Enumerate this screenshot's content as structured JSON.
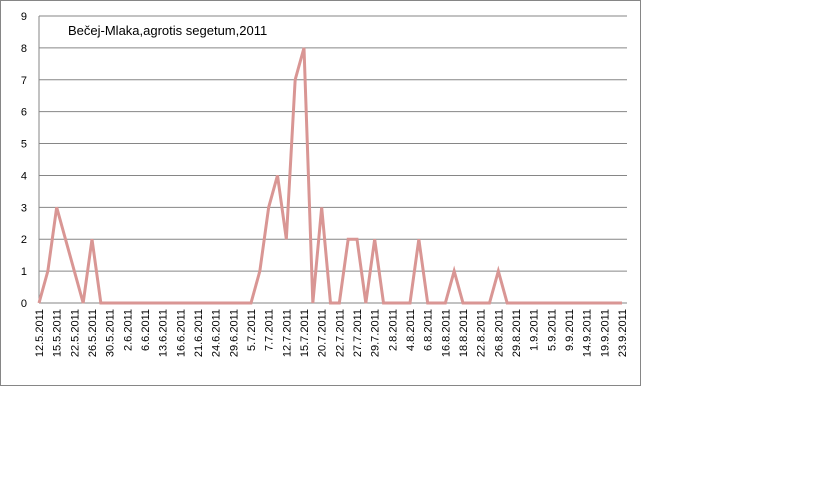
{
  "chart_data": {
    "type": "line",
    "title": "Bečej-Mlaka,agrotis segetum,2011",
    "categories": [
      "12.5.2011",
      null,
      "15.5.2011",
      null,
      "22.5.2011",
      null,
      "26.5.2011",
      null,
      "30.5.2011",
      null,
      "2.6.2011",
      null,
      "6.6.2011",
      null,
      "13.6.2011",
      null,
      "16.6.2011",
      null,
      "21.6.2011",
      null,
      "24.6.2011",
      null,
      "29.6.2011",
      null,
      "5.7.2011",
      null,
      "7.7.2011",
      null,
      "12.7.2011",
      null,
      "15.7.2011",
      null,
      "20.7.2011",
      null,
      "22.7.2011",
      null,
      "27.7.2011",
      null,
      "29.7.2011",
      null,
      "2.8.2011",
      null,
      "4.8.2011",
      null,
      "6.8.2011",
      null,
      "16.8.2011",
      null,
      "18.8.2011",
      null,
      "22.8.2011",
      null,
      "26.8.2011",
      null,
      "29.8.2011",
      null,
      "1.9.2011",
      null,
      "5.9.2011",
      null,
      "9.9.2011",
      null,
      "14.9.2011",
      null,
      "19.9.2011",
      null,
      "23.9.2011"
    ],
    "values": [
      0,
      1,
      3,
      2,
      1,
      0,
      2,
      0,
      0,
      0,
      0,
      0,
      0,
      0,
      0,
      0,
      0,
      0,
      0,
      0,
      0,
      0,
      0,
      0,
      0,
      1,
      3,
      4,
      2,
      7,
      8,
      0,
      3,
      0,
      0,
      2,
      2,
      0,
      2,
      0,
      0,
      0,
      0,
      2,
      0,
      0,
      0,
      1,
      0,
      0,
      0,
      0,
      1,
      0,
      0,
      0,
      0,
      0,
      0,
      0,
      0,
      0,
      0,
      0,
      0,
      0,
      0
    ],
    "color": "#d99694",
    "ylim": [
      0,
      9
    ],
    "yticks": [
      0,
      1,
      2,
      3,
      4,
      5,
      6,
      7,
      8,
      9
    ],
    "grid": true
  }
}
